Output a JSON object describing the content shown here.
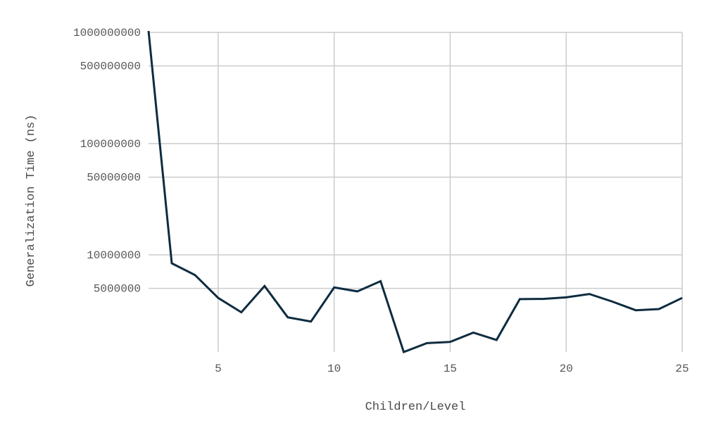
{
  "chart_data": {
    "type": "line",
    "title": "",
    "xlabel": "Children/Level",
    "ylabel": "Generalization Time (ns)",
    "x_scale": "linear",
    "y_scale": "log",
    "xlim": [
      2,
      25
    ],
    "ylim": [
      1340000,
      1000000000
    ],
    "x_ticks": [
      5,
      10,
      15,
      20,
      25
    ],
    "y_ticks": [
      5000000,
      10000000,
      50000000,
      100000000,
      500000000,
      1000000000
    ],
    "grid": true,
    "legend": "none",
    "colors": {
      "line": "#0e2c40",
      "grid": "#cccccc",
      "text": "#555555"
    },
    "series": [
      {
        "x": [
          2,
          3,
          4,
          5,
          6,
          7,
          8,
          9,
          10,
          11,
          12,
          13,
          14,
          15,
          16,
          17,
          18,
          19,
          20,
          21,
          22,
          23,
          24,
          25
        ],
        "values": [
          1050000000,
          8400000,
          6600000,
          4100000,
          3050000,
          5250000,
          2750000,
          2520000,
          5100000,
          4700000,
          5800000,
          1340000,
          1610000,
          1650000,
          2000000,
          1720000,
          4000000,
          4020000,
          4150000,
          4450000,
          3800000,
          3180000,
          3260000,
          4100000
        ]
      }
    ]
  }
}
